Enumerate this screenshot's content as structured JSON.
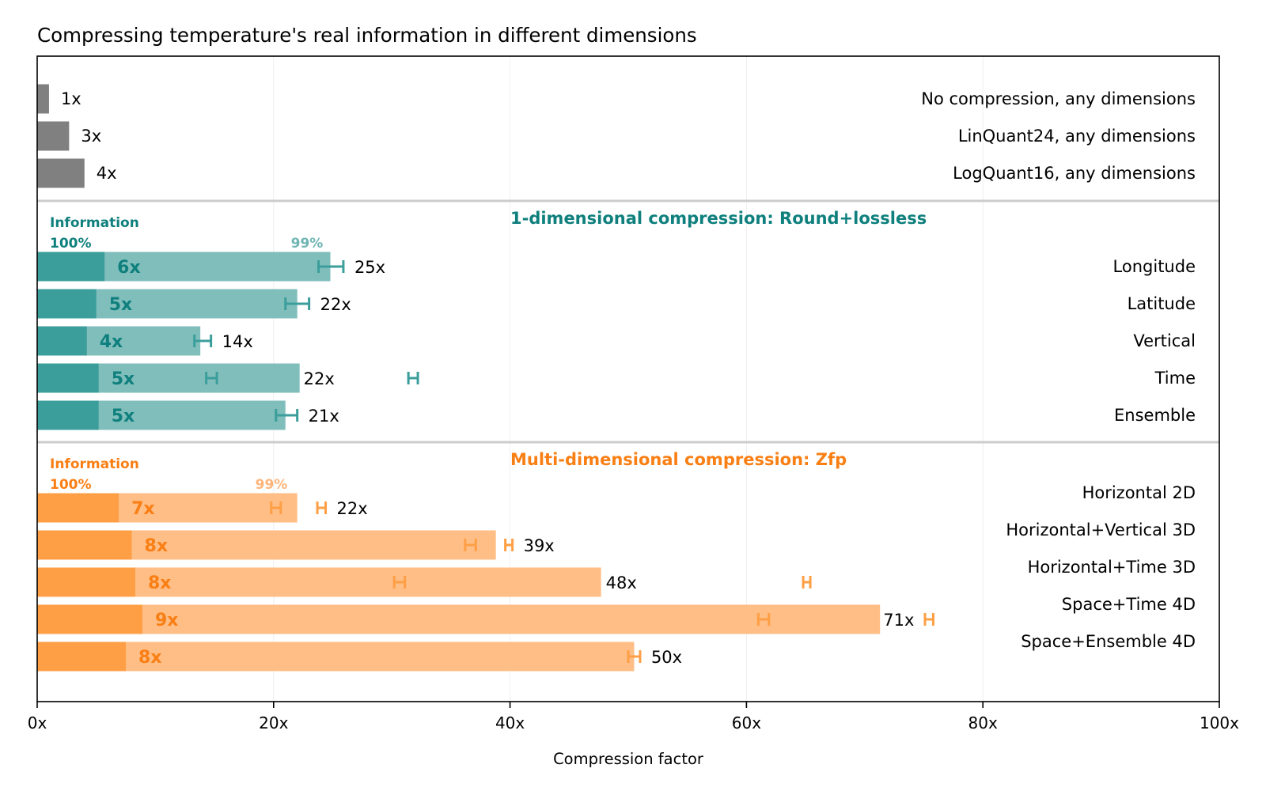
{
  "chart_data": {
    "type": "bar",
    "orientation": "horizontal",
    "title": "Compressing temperature's real information in different dimensions",
    "xlabel": "Compression factor",
    "xlim": [
      0,
      100
    ],
    "xticks": [
      0,
      20,
      40,
      60,
      80,
      100
    ],
    "xtick_labels": [
      "0x",
      "20x",
      "40x",
      "60x",
      "80x",
      "100x"
    ],
    "grid": "vertical, light",
    "colors": {
      "baseline": "#808080",
      "teal_dark": "#3b9e9b",
      "teal_light": "#80bebc",
      "teal_text": "#0f807d",
      "teal_pct_light": "#6fb6b3",
      "orange_dark": "#ff9f45",
      "orange_light": "#ffbe86",
      "orange_text": "#f97f14",
      "orange_pct_light": "#ffb47a",
      "separator": "#cccccc",
      "grid": "#eeeeee"
    },
    "groups": [
      {
        "heading": "",
        "info_label": "",
        "pct_full": "",
        "pct_99": "",
        "bars": [
          {
            "label": "No compression, any dimensions",
            "value": 1,
            "value_label": "1x"
          },
          {
            "label": "LinQuant24, any dimensions",
            "value": 2.7,
            "value_label": "3x"
          },
          {
            "label": "LogQuant16, any dimensions",
            "value": 4,
            "value_label": "4x"
          }
        ]
      },
      {
        "heading": "1-dimensional compression: Round+lossless",
        "info_label": "Information",
        "pct_full": "100%",
        "pct_99": "99%",
        "bars": [
          {
            "label": "Longitude",
            "value_full": 5.7,
            "value_99": 24.8,
            "label_full": "6x",
            "label_99": "25x",
            "err_full": [
              23.8,
              25.9
            ],
            "err_99": null
          },
          {
            "label": "Latitude",
            "value_full": 5.0,
            "value_99": 22.0,
            "label_full": "5x",
            "label_99": "22x",
            "err_full": [
              21.0,
              23.0
            ],
            "err_99": null
          },
          {
            "label": "Vertical",
            "value_full": 4.2,
            "value_99": 13.8,
            "label_full": "4x",
            "label_99": "14x",
            "err_full": [
              13.3,
              14.7
            ],
            "err_99": null
          },
          {
            "label": "Time",
            "value_full": 5.2,
            "value_99": 22.2,
            "label_full": "5x",
            "label_99": "22x",
            "err_full": [
              14.3,
              15.2
            ],
            "err_99": [
              31.4,
              32.2
            ]
          },
          {
            "label": "Ensemble",
            "value_full": 5.2,
            "value_99": 21.0,
            "label_full": "5x",
            "label_99": "21x",
            "err_full": [
              20.2,
              22.0
            ],
            "err_99": null
          }
        ]
      },
      {
        "heading": "Multi-dimensional compression: Zfp",
        "info_label": "Information",
        "pct_full": "100%",
        "pct_99": "99%",
        "bars": [
          {
            "label": "Horizontal 2D",
            "value_full": 6.9,
            "value_99": 22.0,
            "label_full": "7x",
            "label_99": "22x",
            "err_full": [
              19.8,
              20.6
            ],
            "err_99": [
              23.7,
              24.4
            ]
          },
          {
            "label": "Horizontal+Vertical 3D",
            "value_full": 8.0,
            "value_99": 38.8,
            "label_full": "8x",
            "label_99": "39x",
            "err_full": [
              36.2,
              37.1
            ],
            "err_99": [
              39.6,
              40.2
            ]
          },
          {
            "label": "Horizontal+Time 3D",
            "value_full": 8.3,
            "value_99": 47.7,
            "label_full": "8x",
            "label_99": "48x",
            "err_full": [
              30.2,
              31.1
            ],
            "err_99": [
              64.8,
              65.4
            ]
          },
          {
            "label": "Space+Time 4D",
            "value_full": 8.9,
            "value_99": 71.3,
            "label_full": "9x",
            "label_99": "71x",
            "err_full": [
              61.0,
              61.9
            ],
            "err_99": [
              75.1,
              75.8
            ]
          },
          {
            "label": "Space+Ensemble 4D",
            "value_full": 7.5,
            "value_99": 50.5,
            "label_full": "8x",
            "label_99": "50x",
            "err_full": [
              50.0,
              51.0
            ],
            "err_99": null
          }
        ]
      }
    ]
  }
}
